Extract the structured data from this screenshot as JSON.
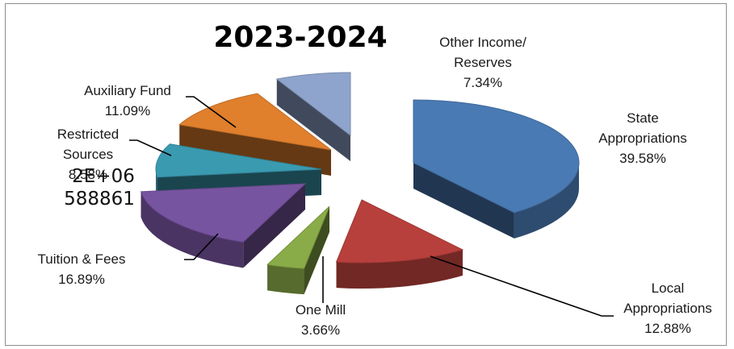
{
  "chart_data": {
    "type": "pie",
    "title": "2023-2024",
    "slices": [
      {
        "name": "State Appropriations",
        "name_lines": [
          "State",
          "Appropriations"
        ],
        "percent": 39.58,
        "label": "39.58%",
        "color": "#4a7ab4"
      },
      {
        "name": "Local Appropriations",
        "name_lines": [
          "Local",
          "Appropriations"
        ],
        "percent": 12.88,
        "label": "12.88%",
        "color": "#b8403c"
      },
      {
        "name": "One Mill",
        "name_lines": [
          "One Mill"
        ],
        "percent": 3.66,
        "label": "3.66%",
        "color": "#8aac48"
      },
      {
        "name": "Tuition & Fees",
        "name_lines": [
          "Tuition & Fees"
        ],
        "percent": 16.89,
        "label": "16.89%",
        "color": "#7754a0"
      },
      {
        "name": "Restricted Sources",
        "name_lines": [
          "Restricted",
          "Sources"
        ],
        "percent": 8.58,
        "label": "8.58%",
        "color": "#3a9ab0"
      },
      {
        "name": "Auxiliary Fund",
        "name_lines": [
          "Auxiliary Fund"
        ],
        "percent": 11.09,
        "label": "11.09%",
        "color": "#e07f2c"
      },
      {
        "name": "Other Income/ Reserves",
        "name_lines": [
          "Other Income/",
          "Reserves"
        ],
        "percent": 7.34,
        "label": "7.34%",
        "color": "#8ea4cc"
      }
    ],
    "overlay_text": [
      "2E+06",
      "588861"
    ]
  }
}
